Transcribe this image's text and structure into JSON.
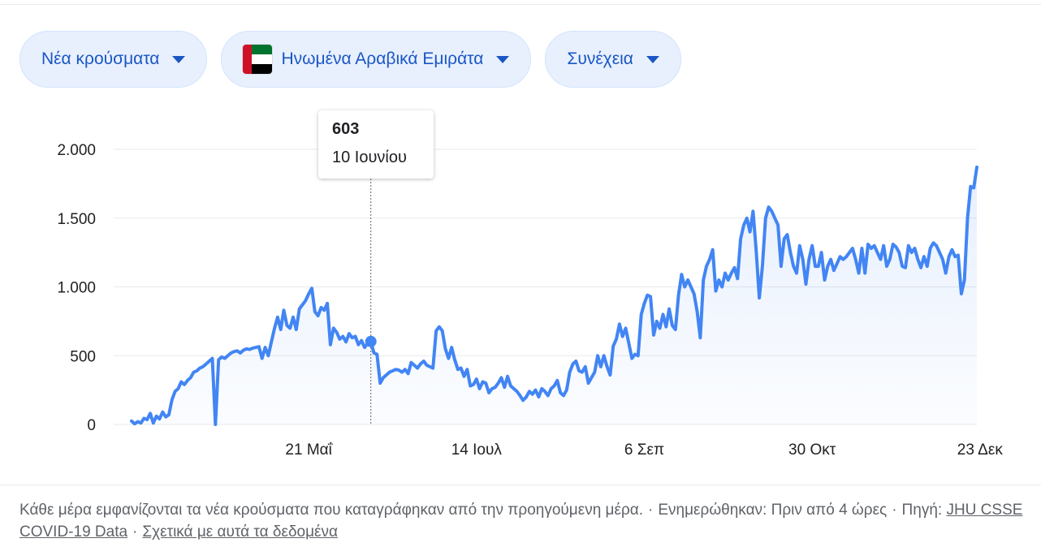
{
  "filters": {
    "metric": "Νέα κρούσματα",
    "country": "Ηνωμένα Αραβικά Εμιράτα",
    "mode": "Συνέχεια"
  },
  "colors": {
    "line": "#4285f4",
    "flag_red": "#ce1126",
    "flag_green": "#00732f",
    "flag_white": "#ffffff",
    "flag_black": "#000000"
  },
  "tooltip": {
    "value": "603",
    "date": "10 Ιουνίου"
  },
  "footer": {
    "note": "Κάθε μέρα εμφανίζονται τα νέα κρούσματα που καταγράφηκαν από την προηγούμενη μέρα.",
    "updated": "Ενημερώθηκαν: Πριν από 4 ώρες",
    "source_label": "Πηγή:",
    "source_link": "JHU CSSE COVID-19 Data",
    "about_link": "Σχετικά με αυτά τα δεδομένα"
  },
  "chart_data": {
    "type": "area",
    "ylim": [
      0,
      2000
    ],
    "yticks": [
      0,
      500,
      1000,
      1500,
      2000
    ],
    "ytick_labels": [
      "0",
      "500",
      "1.000",
      "1.500",
      "2.000"
    ],
    "xticks": [
      {
        "day": 57,
        "label": "21 Μαΐ"
      },
      {
        "day": 111,
        "label": "14 Ιουλ"
      },
      {
        "day": 165,
        "label": "6 Σεπ"
      },
      {
        "day": 219,
        "label": "30 Οκτ"
      },
      {
        "day": 273,
        "label": "23 Δεκ"
      }
    ],
    "highlight": {
      "day": 77,
      "value": 603
    },
    "series": [
      {
        "points": [
          [
            0,
            25
          ],
          [
            1,
            5
          ],
          [
            2,
            20
          ],
          [
            3,
            10
          ],
          [
            4,
            45
          ],
          [
            5,
            35
          ],
          [
            6,
            80
          ],
          [
            7,
            10
          ],
          [
            8,
            60
          ],
          [
            9,
            40
          ],
          [
            10,
            90
          ],
          [
            11,
            55
          ],
          [
            12,
            70
          ],
          [
            13,
            180
          ],
          [
            14,
            240
          ],
          [
            15,
            260
          ],
          [
            16,
            310
          ],
          [
            17,
            290
          ],
          [
            18,
            320
          ],
          [
            19,
            340
          ],
          [
            20,
            380
          ],
          [
            21,
            390
          ],
          [
            22,
            410
          ],
          [
            23,
            420
          ],
          [
            24,
            440
          ],
          [
            25,
            460
          ],
          [
            26,
            480
          ],
          [
            27,
            0
          ],
          [
            28,
            470
          ],
          [
            29,
            490
          ],
          [
            30,
            480
          ],
          [
            31,
            500
          ],
          [
            32,
            520
          ],
          [
            33,
            530
          ],
          [
            34,
            535
          ],
          [
            35,
            520
          ],
          [
            36,
            540
          ],
          [
            37,
            550
          ],
          [
            38,
            545
          ],
          [
            39,
            555
          ],
          [
            40,
            560
          ],
          [
            41,
            565
          ],
          [
            42,
            480
          ],
          [
            43,
            560
          ],
          [
            44,
            500
          ],
          [
            45,
            600
          ],
          [
            46,
            700
          ],
          [
            47,
            780
          ],
          [
            48,
            690
          ],
          [
            49,
            830
          ],
          [
            50,
            720
          ],
          [
            51,
            700
          ],
          [
            52,
            780
          ],
          [
            53,
            690
          ],
          [
            54,
            840
          ],
          [
            55,
            870
          ],
          [
            56,
            900
          ],
          [
            57,
            950
          ],
          [
            58,
            990
          ],
          [
            59,
            820
          ],
          [
            60,
            790
          ],
          [
            61,
            850
          ],
          [
            62,
            830
          ],
          [
            63,
            880
          ],
          [
            64,
            580
          ],
          [
            65,
            700
          ],
          [
            66,
            670
          ],
          [
            67,
            620
          ],
          [
            68,
            640
          ],
          [
            69,
            600
          ],
          [
            70,
            660
          ],
          [
            71,
            630
          ],
          [
            72,
            640
          ],
          [
            73,
            580
          ],
          [
            74,
            610
          ],
          [
            75,
            560
          ],
          [
            76,
            590
          ],
          [
            77,
            603
          ],
          [
            78,
            520
          ],
          [
            79,
            510
          ],
          [
            80,
            300
          ],
          [
            81,
            340
          ],
          [
            82,
            360
          ],
          [
            83,
            380
          ],
          [
            84,
            390
          ],
          [
            85,
            400
          ],
          [
            86,
            395
          ],
          [
            87,
            380
          ],
          [
            88,
            400
          ],
          [
            89,
            370
          ],
          [
            90,
            450
          ],
          [
            91,
            430
          ],
          [
            92,
            410
          ],
          [
            93,
            440
          ],
          [
            94,
            460
          ],
          [
            95,
            430
          ],
          [
            96,
            420
          ],
          [
            97,
            410
          ],
          [
            98,
            680
          ],
          [
            99,
            710
          ],
          [
            100,
            680
          ],
          [
            101,
            550
          ],
          [
            102,
            480
          ],
          [
            103,
            560
          ],
          [
            104,
            470
          ],
          [
            105,
            400
          ],
          [
            106,
            410
          ],
          [
            107,
            350
          ],
          [
            108,
            400
          ],
          [
            109,
            280
          ],
          [
            110,
            290
          ],
          [
            111,
            330
          ],
          [
            112,
            260
          ],
          [
            113,
            310
          ],
          [
            114,
            300
          ],
          [
            115,
            230
          ],
          [
            116,
            260
          ],
          [
            117,
            270
          ],
          [
            118,
            300
          ],
          [
            119,
            340
          ],
          [
            120,
            270
          ],
          [
            121,
            350
          ],
          [
            122,
            280
          ],
          [
            123,
            260
          ],
          [
            124,
            240
          ],
          [
            125,
            210
          ],
          [
            126,
            175
          ],
          [
            127,
            200
          ],
          [
            128,
            240
          ],
          [
            129,
            220
          ],
          [
            130,
            250
          ],
          [
            131,
            200
          ],
          [
            132,
            260
          ],
          [
            133,
            240
          ],
          [
            134,
            210
          ],
          [
            135,
            260
          ],
          [
            136,
            280
          ],
          [
            137,
            320
          ],
          [
            138,
            230
          ],
          [
            139,
            210
          ],
          [
            140,
            250
          ],
          [
            141,
            380
          ],
          [
            142,
            440
          ],
          [
            143,
            460
          ],
          [
            144,
            390
          ],
          [
            145,
            380
          ],
          [
            146,
            420
          ],
          [
            147,
            300
          ],
          [
            148,
            340
          ],
          [
            149,
            380
          ],
          [
            150,
            500
          ],
          [
            151,
            420
          ],
          [
            152,
            500
          ],
          [
            153,
            420
          ],
          [
            154,
            360
          ],
          [
            155,
            570
          ],
          [
            156,
            620
          ],
          [
            157,
            730
          ],
          [
            158,
            640
          ],
          [
            159,
            700
          ],
          [
            160,
            590
          ],
          [
            161,
            480
          ],
          [
            162,
            510
          ],
          [
            163,
            500
          ],
          [
            164,
            800
          ],
          [
            165,
            880
          ],
          [
            166,
            940
          ],
          [
            167,
            930
          ],
          [
            168,
            650
          ],
          [
            169,
            750
          ],
          [
            170,
            700
          ],
          [
            171,
            800
          ],
          [
            172,
            710
          ],
          [
            173,
            840
          ],
          [
            174,
            720
          ],
          [
            175,
            690
          ],
          [
            176,
            940
          ],
          [
            177,
            1090
          ],
          [
            178,
            1000
          ],
          [
            179,
            1050
          ],
          [
            180,
            1000
          ],
          [
            181,
            950
          ],
          [
            182,
            820
          ],
          [
            183,
            630
          ],
          [
            184,
            1050
          ],
          [
            185,
            1150
          ],
          [
            186,
            1200
          ],
          [
            187,
            1270
          ],
          [
            188,
            970
          ],
          [
            189,
            1050
          ],
          [
            190,
            1000
          ],
          [
            191,
            1100
          ],
          [
            192,
            1050
          ],
          [
            193,
            1100
          ],
          [
            194,
            1140
          ],
          [
            195,
            1060
          ],
          [
            196,
            1350
          ],
          [
            197,
            1450
          ],
          [
            198,
            1500
          ],
          [
            199,
            1400
          ],
          [
            200,
            1550
          ],
          [
            201,
            1260
          ],
          [
            202,
            920
          ],
          [
            203,
            1150
          ],
          [
            204,
            1500
          ],
          [
            205,
            1580
          ],
          [
            206,
            1550
          ],
          [
            207,
            1500
          ],
          [
            208,
            1450
          ],
          [
            209,
            1150
          ],
          [
            210,
            1350
          ],
          [
            211,
            1380
          ],
          [
            212,
            1250
          ],
          [
            213,
            1150
          ],
          [
            214,
            1100
          ],
          [
            215,
            1300
          ],
          [
            216,
            1200
          ],
          [
            217,
            1020
          ],
          [
            218,
            1200
          ],
          [
            219,
            1300
          ],
          [
            220,
            1150
          ],
          [
            221,
            1150
          ],
          [
            222,
            1250
          ],
          [
            223,
            1050
          ],
          [
            224,
            1150
          ],
          [
            225,
            1200
          ],
          [
            226,
            1120
          ],
          [
            227,
            1170
          ],
          [
            228,
            1220
          ],
          [
            229,
            1200
          ],
          [
            230,
            1220
          ],
          [
            231,
            1250
          ],
          [
            232,
            1280
          ],
          [
            233,
            1200
          ],
          [
            234,
            1100
          ],
          [
            235,
            1280
          ],
          [
            236,
            1100
          ],
          [
            237,
            1310
          ],
          [
            238,
            1280
          ],
          [
            239,
            1300
          ],
          [
            240,
            1250
          ],
          [
            241,
            1200
          ],
          [
            242,
            1300
          ],
          [
            243,
            1150
          ],
          [
            244,
            1200
          ],
          [
            245,
            1310
          ],
          [
            246,
            1290
          ],
          [
            247,
            1250
          ],
          [
            248,
            1150
          ],
          [
            249,
            1140
          ],
          [
            250,
            1300
          ],
          [
            251,
            1250
          ],
          [
            252,
            1280
          ],
          [
            253,
            1200
          ],
          [
            254,
            1140
          ],
          [
            255,
            1220
          ],
          [
            256,
            1150
          ],
          [
            257,
            1280
          ],
          [
            258,
            1320
          ],
          [
            259,
            1300
          ],
          [
            260,
            1250
          ],
          [
            261,
            1200
          ],
          [
            262,
            1100
          ],
          [
            263,
            1220
          ],
          [
            264,
            1270
          ],
          [
            265,
            1220
          ],
          [
            266,
            1230
          ],
          [
            267,
            950
          ],
          [
            268,
            1050
          ],
          [
            269,
            1500
          ],
          [
            270,
            1730
          ],
          [
            271,
            1720
          ],
          [
            272,
            1870
          ]
        ]
      }
    ]
  }
}
